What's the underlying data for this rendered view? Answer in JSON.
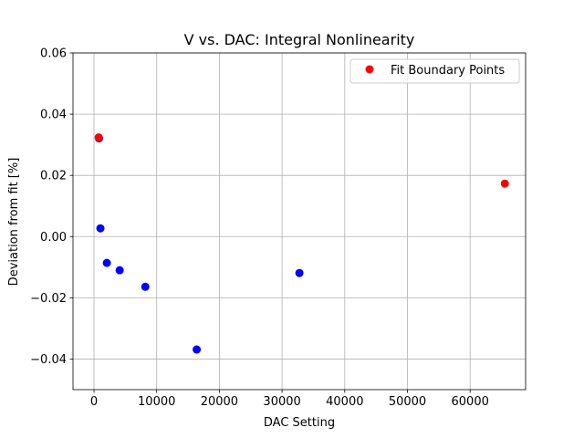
{
  "chart_data": {
    "type": "scatter",
    "title": "V vs. DAC: Integral Nonlinearity",
    "xlabel": "DAC Setting",
    "ylabel": "Deviation from fit [%]",
    "xlim": [
      -3350,
      68850
    ],
    "ylim": [
      -0.05,
      0.06
    ],
    "xticks": [
      0,
      10000,
      20000,
      30000,
      40000,
      50000,
      60000
    ],
    "xtick_labels": [
      "0",
      "10000",
      "20000",
      "30000",
      "40000",
      "50000",
      "60000"
    ],
    "yticks": [
      -0.04,
      -0.02,
      0.0,
      0.02,
      0.04,
      0.06
    ],
    "ytick_labels": [
      "−0.04",
      "−0.02",
      "0.00",
      "0.02",
      "0.04",
      "0.06"
    ],
    "grid": true,
    "legend_position": "top-right",
    "series": [
      {
        "color": "#0000ff",
        "x": [
          800,
          1024,
          2048,
          4096,
          8192,
          16384,
          32768
        ],
        "y": [
          0.0321,
          0.0027,
          -0.0086,
          -0.011,
          -0.0164,
          -0.0369,
          -0.0119
        ]
      },
      {
        "name": "Fit Boundary Points",
        "color": "#ff0000",
        "x": [
          750,
          65535
        ],
        "y": [
          0.0324,
          0.0173
        ]
      }
    ]
  }
}
